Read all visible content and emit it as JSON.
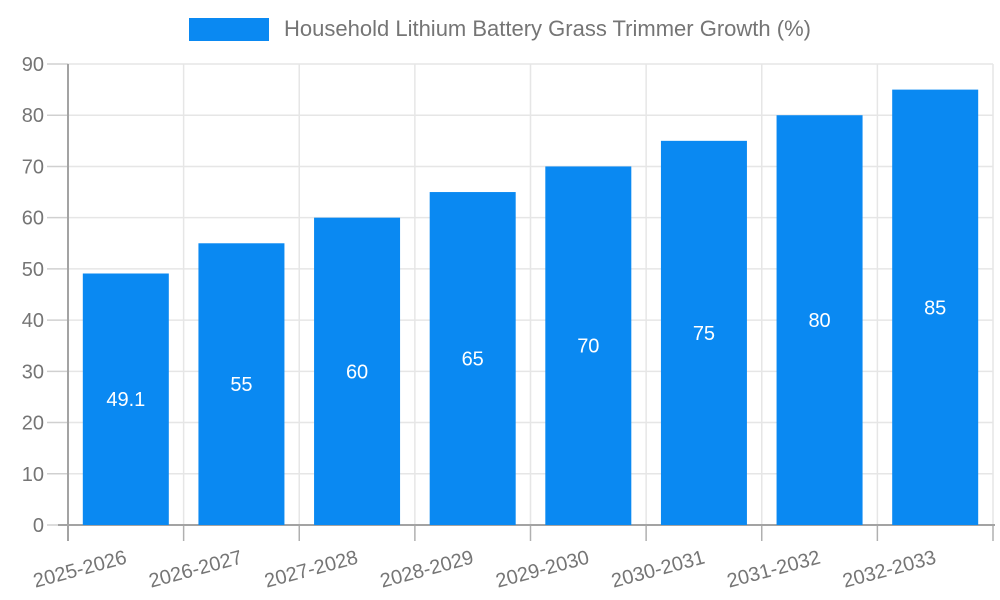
{
  "legend": {
    "label": "Household Lithium Battery Grass Trimmer Growth (%)",
    "swatch_color": "#0a89f2"
  },
  "chart_data": {
    "type": "bar",
    "title": "Household Lithium Battery Grass Trimmer Growth (%)",
    "categories": [
      "2025-2026",
      "2026-2027",
      "2027-2028",
      "2028-2029",
      "2029-2030",
      "2030-2031",
      "2031-2032",
      "2032-2033"
    ],
    "values": [
      49.1,
      55,
      60,
      65,
      70,
      75,
      80,
      85
    ],
    "bar_labels": [
      "49.1",
      "55",
      "60",
      "65",
      "70",
      "75",
      "80",
      "85"
    ],
    "xlabel": "",
    "ylabel": "",
    "ylim": [
      0,
      90
    ],
    "yticks": [
      0,
      10,
      20,
      30,
      40,
      50,
      60,
      70,
      80,
      90
    ],
    "grid": true,
    "legend_position": "top-center",
    "xtick_rotation_deg": -15,
    "colors": {
      "bar": "#0a89f2",
      "bar_label_text": "#ffffff",
      "axis_text": "#757575",
      "gridline": "#e6e6e6",
      "tick_y": "#d0d0d0",
      "tick_x": "#b0b0b0",
      "axis_line": "#a3a3a3",
      "background": "#ffffff"
    }
  }
}
